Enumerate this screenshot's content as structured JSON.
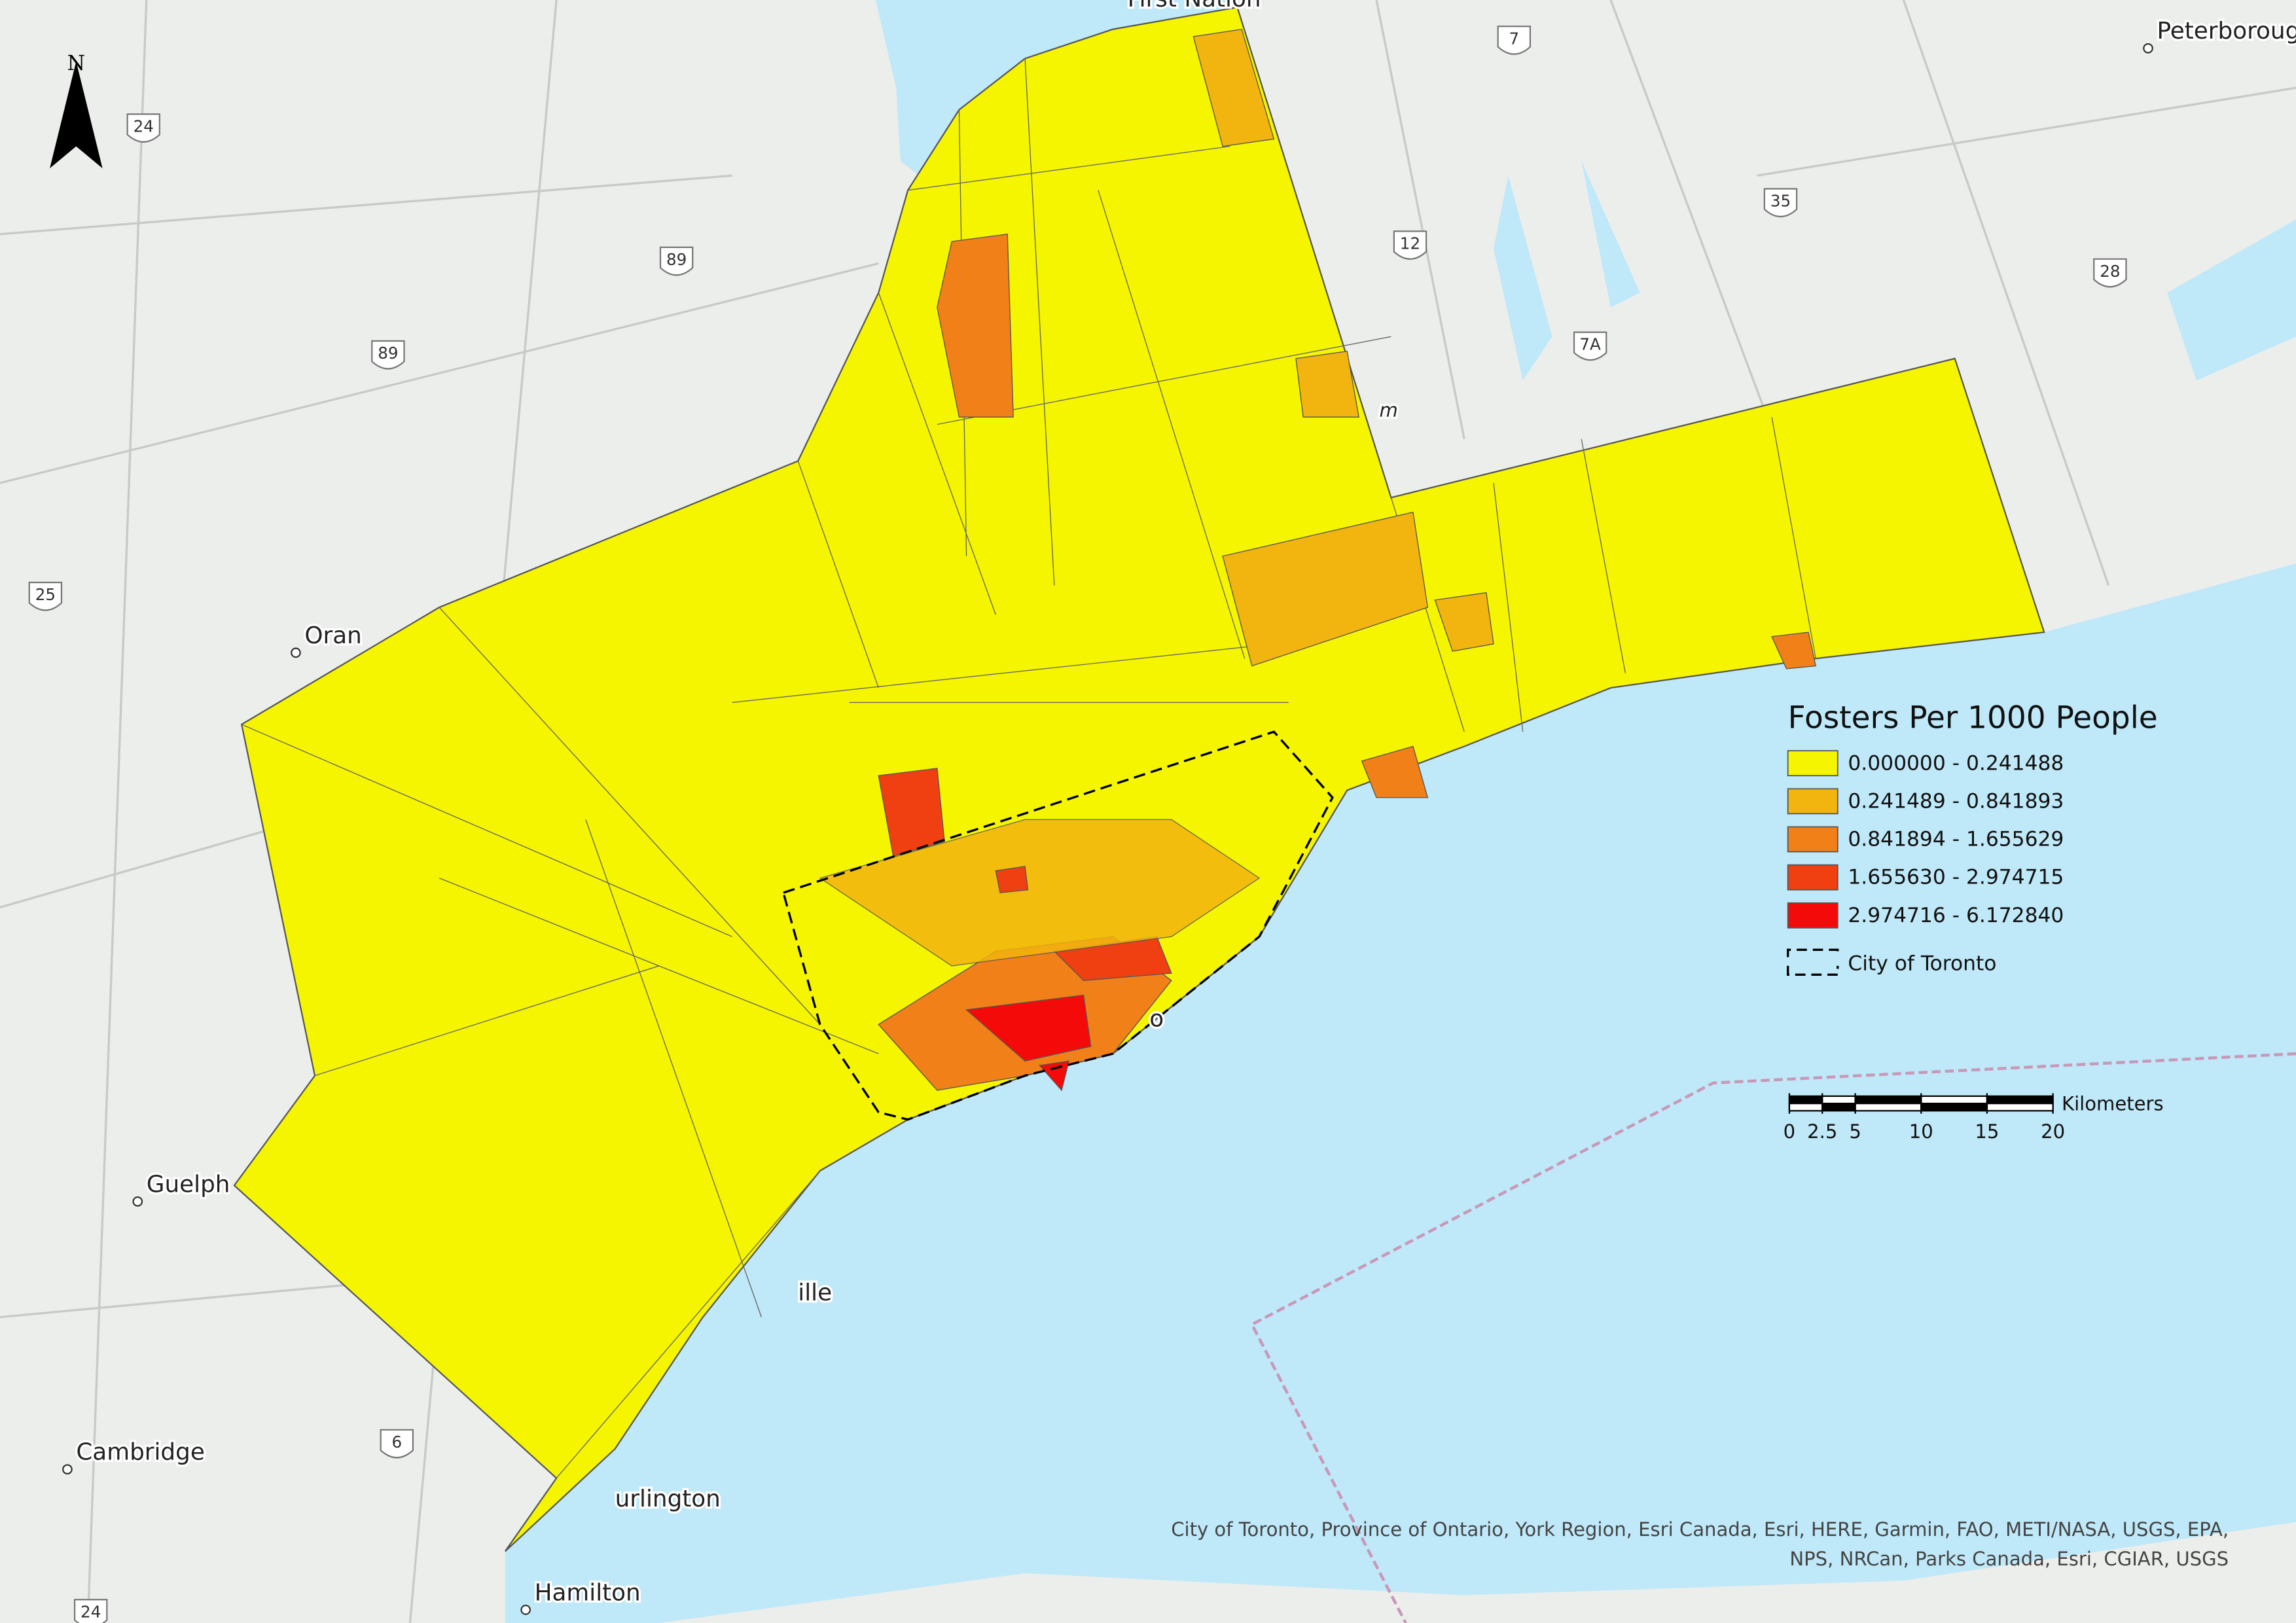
{
  "map": {
    "north": "N",
    "places": [
      {
        "name": "Peterborough",
        "dot": true
      },
      {
        "name": "Guelph",
        "dot": true
      },
      {
        "name": "Cambridge",
        "dot": true
      },
      {
        "name": "Hamilton",
        "dot": true
      },
      {
        "name": "urlington",
        "dot": false
      },
      {
        "name": "ille",
        "dot": false
      },
      {
        "name": "Oran",
        "dot": true
      },
      {
        "name": "First Nation",
        "dot": false
      },
      {
        "name": "o",
        "dot": false
      },
      {
        "name": "m",
        "dot": false
      }
    ],
    "highways": [
      "24",
      "89",
      "89",
      "25",
      "12",
      "35",
      "28",
      "7A",
      "7",
      "6",
      "24"
    ],
    "legend": {
      "title": "Fosters Per 1000 People",
      "classes": [
        {
          "label": "0.000000 - 0.241488",
          "color": "#f5f500"
        },
        {
          "label": "0.241489 - 0.841893",
          "color": "#f2b40f"
        },
        {
          "label": "0.841894 - 1.655629",
          "color": "#f28018"
        },
        {
          "label": "1.655630 - 2.974715",
          "color": "#f04012"
        },
        {
          "label": "2.974716 - 6.172840",
          "color": "#f50a0a"
        }
      ],
      "boundary": "City of Toronto"
    },
    "scale_bar": {
      "unit": "Kilometers",
      "ticks": [
        0,
        2.5,
        5,
        10,
        15,
        20
      ]
    },
    "attribution": [
      "City of Toronto, Province of Ontario, York Region, Esri Canada, Esri, HERE, Garmin, FAO, METI/NASA, USGS, EPA,",
      "NPS, NRCan, Parks Canada, Esri, CGIAR, USGS"
    ]
  }
}
